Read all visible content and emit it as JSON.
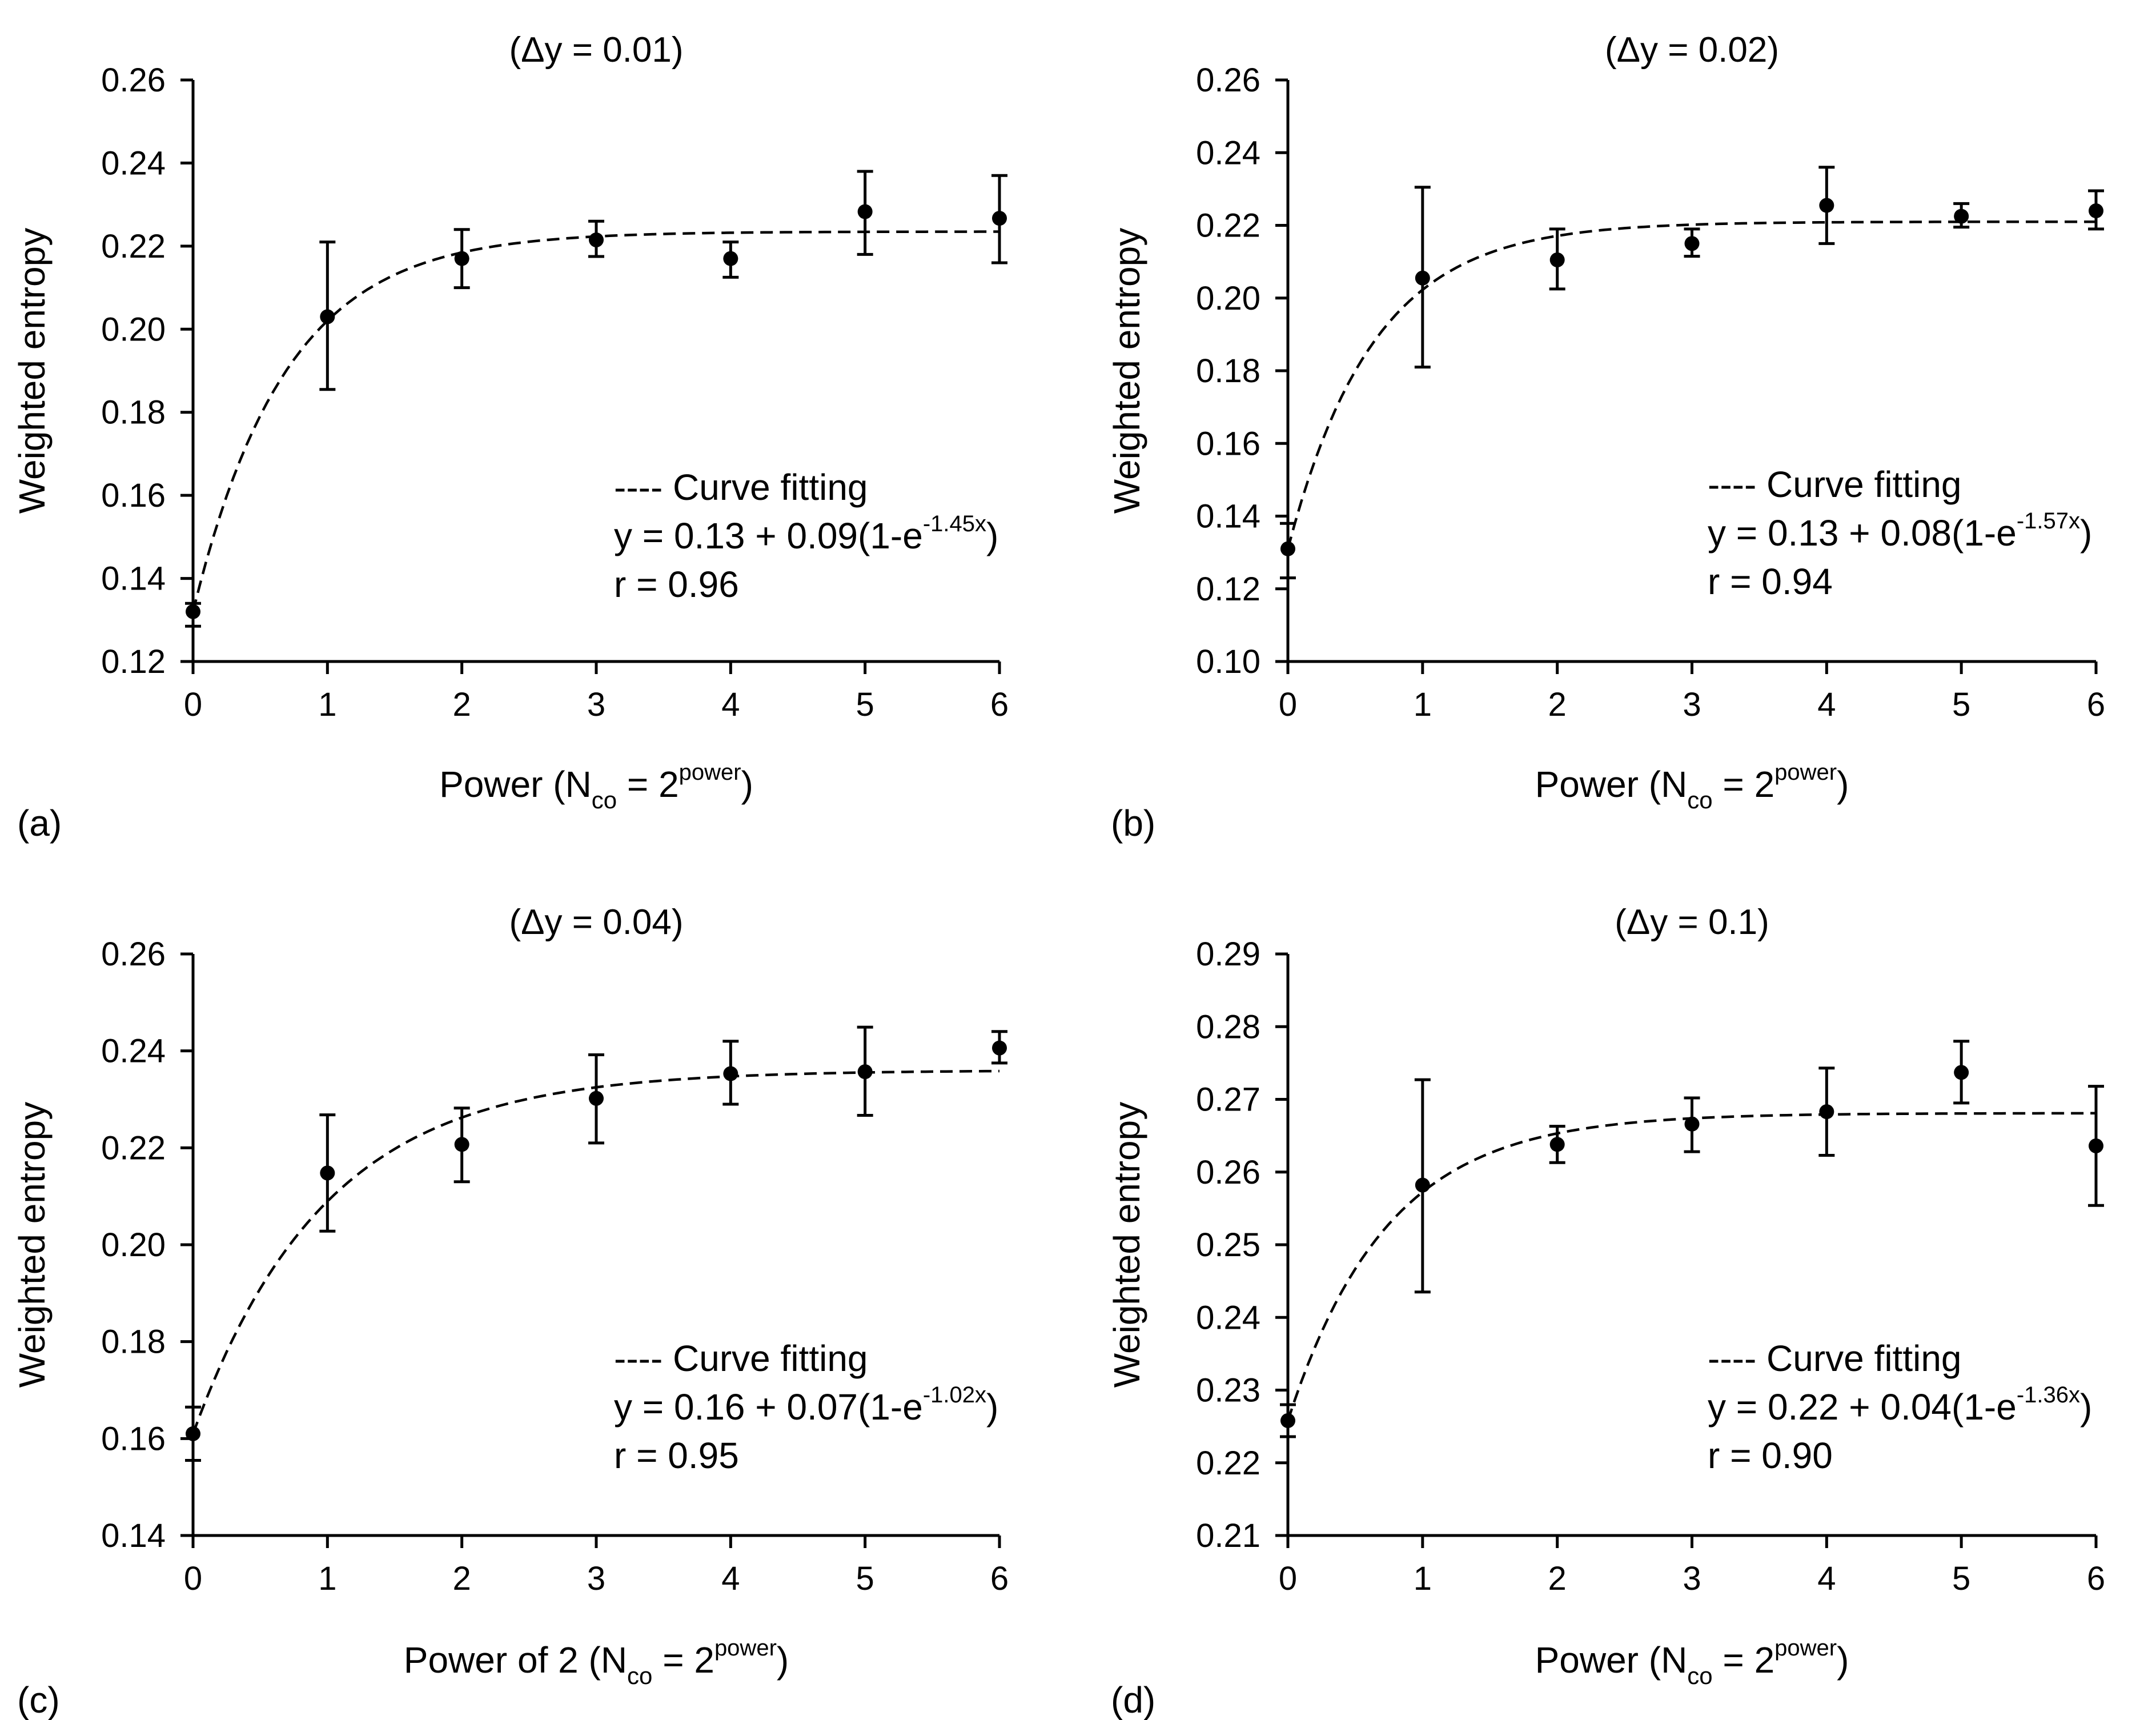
{
  "figure": {
    "x_ticks": [
      "0",
      "1",
      "2",
      "3",
      "4",
      "5",
      "6"
    ],
    "y_label": "Weighted entropy",
    "legend_label": "---- Curve fitting",
    "equation_prefix": "y = ",
    "equation_exp_base": "(1-e",
    "equation_close": ")",
    "x_label_close_paren": ")"
  },
  "chart_data": [
    {
      "type": "scatter",
      "panel_label": "(a)",
      "title": "(Δy = 0.01)",
      "xlabel_main": "Power (N",
      "xlabel_sub": "co",
      "xlabel_mid": " = 2",
      "xlabel_sup": "power",
      "ylabel": "Weighted entropy",
      "xlim": [
        0,
        6
      ],
      "ylim": [
        0.12,
        0.26
      ],
      "y_step": 0.02,
      "y_ticks": [
        "0.12",
        "0.14",
        "0.16",
        "0.18",
        "0.20",
        "0.22",
        "0.24",
        "0.26"
      ],
      "x": [
        0,
        1,
        2,
        3,
        4,
        5,
        6
      ],
      "y": [
        0.132,
        0.203,
        0.217,
        0.2215,
        0.217,
        0.2283,
        0.2267
      ],
      "err_low": [
        0.0035,
        0.0175,
        0.007,
        0.004,
        0.0045,
        0.0103,
        0.0107
      ],
      "err_high": [
        0.002,
        0.018,
        0.007,
        0.0045,
        0.004,
        0.0097,
        0.0103
      ],
      "fit": {
        "a": 0.13,
        "b": 0.09,
        "k": 1.45,
        "y0": 0.132,
        "yinf": 0.2235,
        "r": 0.96
      },
      "equation_a": "0.13",
      "equation_b": " + 0.09",
      "equation_exp": "-1.45x",
      "r_text": "r = 0.96"
    },
    {
      "type": "scatter",
      "panel_label": "(b)",
      "title": "(Δy = 0.02)",
      "xlabel_main": "Power (N",
      "xlabel_sub": "co",
      "xlabel_mid": " = 2",
      "xlabel_sup": "power",
      "ylabel": "Weighted entropy",
      "xlim": [
        0,
        6
      ],
      "ylim": [
        0.1,
        0.26
      ],
      "y_step": 0.02,
      "y_ticks": [
        "0.10",
        "0.12",
        "0.14",
        "0.16",
        "0.18",
        "0.20",
        "0.22",
        "0.24",
        "0.26"
      ],
      "x": [
        0,
        1,
        2,
        3,
        4,
        5,
        6
      ],
      "y": [
        0.131,
        0.2055,
        0.2105,
        0.215,
        0.2255,
        0.2225,
        0.224
      ],
      "err_low": [
        0.008,
        0.0245,
        0.008,
        0.0035,
        0.0105,
        0.003,
        0.005
      ],
      "err_high": [
        0.007,
        0.025,
        0.0085,
        0.004,
        0.0105,
        0.0035,
        0.0055
      ],
      "fit": {
        "a": 0.13,
        "b": 0.08,
        "k": 1.57,
        "y0": 0.131,
        "yinf": 0.221,
        "r": 0.94
      },
      "equation_a": "0.13",
      "equation_b": " + 0.08",
      "equation_exp": "-1.57x",
      "r_text": "r = 0.94"
    },
    {
      "type": "scatter",
      "panel_label": "(c)",
      "title": "(Δy = 0.04)",
      "xlabel_main": "Power of 2 (N",
      "xlabel_sub": "co",
      "xlabel_mid": " = 2",
      "xlabel_sup": "power",
      "ylabel": "Weighted entropy",
      "xlim": [
        0,
        6
      ],
      "ylim": [
        0.14,
        0.26
      ],
      "y_step": 0.02,
      "y_ticks": [
        "0.14",
        "0.16",
        "0.18",
        "0.20",
        "0.22",
        "0.24",
        "0.26"
      ],
      "x": [
        0,
        1,
        2,
        3,
        4,
        5,
        6
      ],
      "y": [
        0.161,
        0.2148,
        0.2207,
        0.2302,
        0.2353,
        0.2357,
        0.2406
      ],
      "err_low": [
        0.0055,
        0.012,
        0.0077,
        0.0092,
        0.0063,
        0.009,
        0.0031
      ],
      "err_high": [
        0.0055,
        0.012,
        0.0075,
        0.009,
        0.0067,
        0.0092,
        0.0034
      ],
      "fit": {
        "a": 0.16,
        "b": 0.07,
        "k": 1.02,
        "y0": 0.161,
        "yinf": 0.236,
        "r": 0.95
      },
      "equation_a": "0.16",
      "equation_b": " + 0.07",
      "equation_exp": "-1.02x",
      "r_text": "r = 0.95"
    },
    {
      "type": "scatter",
      "panel_label": "(d)",
      "title": "(Δy = 0.1)",
      "xlabel_main": "Power (N",
      "xlabel_sub": "co",
      "xlabel_mid": " = 2",
      "xlabel_sup": "power",
      "ylabel": "Weighted entropy",
      "xlim": [
        0,
        6
      ],
      "ylim": [
        0.21,
        0.29
      ],
      "y_step": 0.01,
      "y_ticks": [
        "0.21",
        "0.22",
        "0.23",
        "0.24",
        "0.25",
        "0.26",
        "0.27",
        "0.28",
        "0.29"
      ],
      "x": [
        0,
        1,
        2,
        3,
        4,
        5,
        6
      ],
      "y": [
        0.2258,
        0.2582,
        0.2638,
        0.2666,
        0.2683,
        0.2737,
        0.2636
      ],
      "err_low": [
        0.0022,
        0.0147,
        0.0025,
        0.0038,
        0.006,
        0.0042,
        0.0082
      ],
      "err_high": [
        0.0022,
        0.0145,
        0.0025,
        0.0036,
        0.006,
        0.0043,
        0.0082
      ],
      "fit": {
        "a": 0.22,
        "b": 0.04,
        "k": 1.36,
        "y0": 0.2258,
        "yinf": 0.2681,
        "r": 0.9
      },
      "equation_a": "0.22",
      "equation_b": " + 0.04",
      "equation_exp": "-1.36x",
      "r_text": "r = 0.90"
    }
  ]
}
